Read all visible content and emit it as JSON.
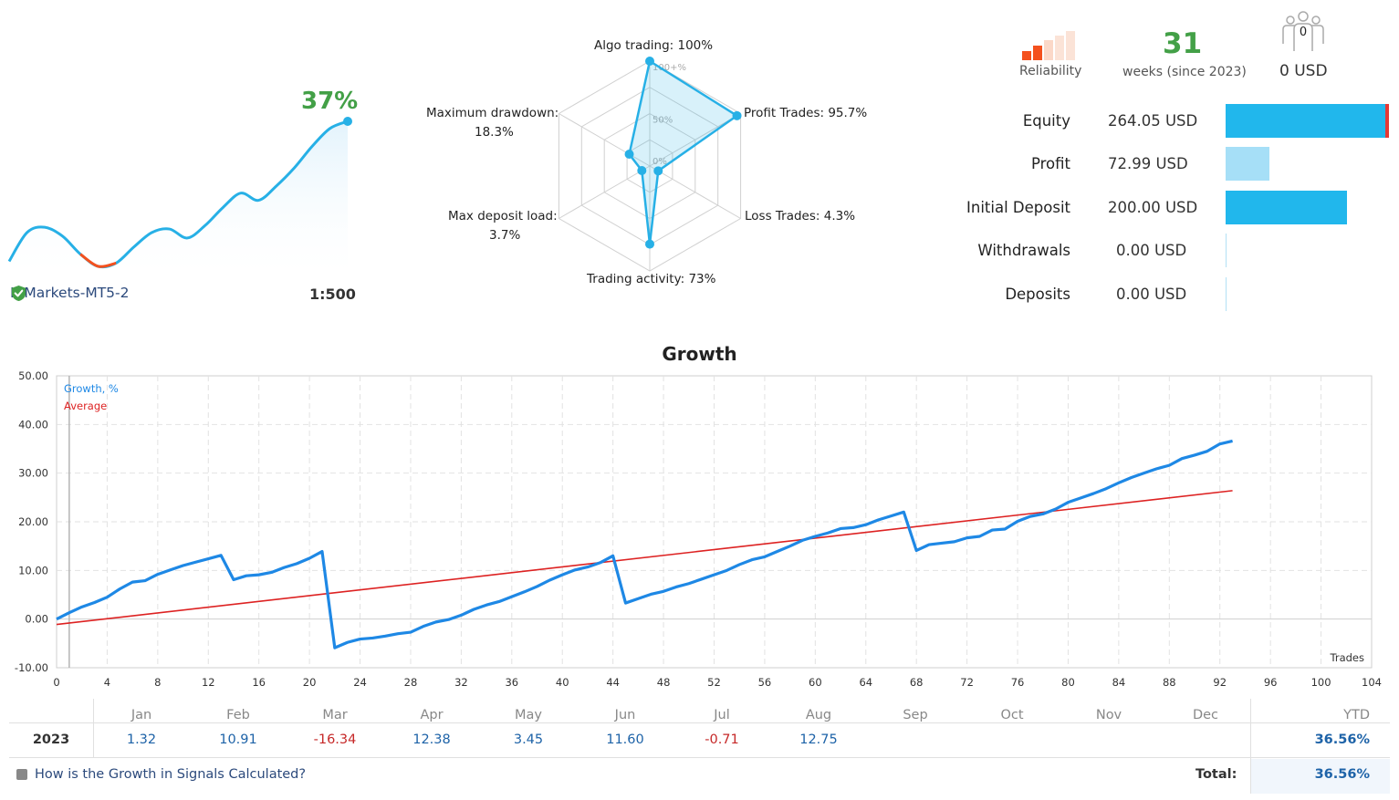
{
  "mini": {
    "growth_pct": "37%",
    "broker": "ICMarkets-MT5-2",
    "leverage": "1:500",
    "colors": {
      "line": "#27b0e6",
      "negative": "#f4511e",
      "fill": "#e3f3fc"
    },
    "sparkline": [
      -2.0,
      6.0,
      7.5,
      5.0,
      0.0,
      -3.4,
      -2.5,
      2.0,
      6.0,
      7.0,
      4.5,
      8.0,
      13.0,
      17.0,
      15.0,
      19.0,
      24.0,
      30.0,
      35.0,
      37.0
    ]
  },
  "radar": {
    "axes": [
      {
        "label": "Algo trading: 100%",
        "value": 100
      },
      {
        "label": "Profit Trades: 95.7%",
        "value": 95.7
      },
      {
        "label": "Loss Trades: 4.3%",
        "value": 4.3
      },
      {
        "label": "Trading activity: 73%",
        "value": 73
      },
      {
        "label": "Max deposit load:",
        "label2": "3.7%",
        "value": 3.7
      },
      {
        "label": "Maximum drawdown:",
        "label2": "18.3%",
        "value": 18.3
      }
    ],
    "ring_labels": [
      "100+%",
      "50%",
      "0%"
    ],
    "color": "#27b0e6"
  },
  "stats": {
    "reliability_label": "Reliability",
    "weeks_number": "31",
    "weeks_label": "weeks (since 2023)",
    "subscribers_count": "0",
    "subscribers_usd": "0 USD",
    "rows": [
      {
        "label": "Equity",
        "value": "264.05 USD",
        "amount": 264.05,
        "color": "#21b7ec"
      },
      {
        "label": "Profit",
        "value": "72.99 USD",
        "amount": 72.99,
        "color": "#a6dff7"
      },
      {
        "label": "Initial Deposit",
        "value": "200.00 USD",
        "amount": 200.0,
        "color": "#21b7ec"
      },
      {
        "label": "Withdrawals",
        "value": "0.00 USD",
        "amount": 0,
        "color": "#21b7ec"
      },
      {
        "label": "Deposits",
        "value": "0.00 USD",
        "amount": 0,
        "color": "#21b7ec"
      }
    ]
  },
  "chart_data": {
    "type": "line",
    "title": "Growth",
    "xlabel": "Trades",
    "ylabel": "",
    "xlim": [
      0,
      104
    ],
    "ylim": [
      -10,
      50
    ],
    "xticks": [
      0,
      4,
      8,
      12,
      16,
      20,
      24,
      28,
      32,
      36,
      40,
      44,
      48,
      52,
      56,
      60,
      64,
      68,
      72,
      76,
      80,
      84,
      88,
      92,
      96,
      100,
      104
    ],
    "yticks": [
      "-10.00",
      "0.00",
      "10.00",
      "20.00",
      "30.00",
      "40.00",
      "50.00"
    ],
    "grid": true,
    "legend": "top-left",
    "series": [
      {
        "name": "Growth, %",
        "color": "#1e88e5",
        "x": [
          0,
          1,
          2,
          3,
          4,
          5,
          6,
          7,
          8,
          9,
          10,
          11,
          12,
          13,
          14,
          15,
          16,
          17,
          18,
          19,
          20,
          21,
          22,
          23,
          24,
          25,
          26,
          27,
          28,
          29,
          30,
          31,
          32,
          33,
          34,
          35,
          36,
          37,
          38,
          39,
          40,
          41,
          42,
          43,
          44,
          45,
          46,
          47,
          48,
          49,
          50,
          51,
          52,
          53,
          54,
          55,
          56,
          57,
          58,
          59,
          60,
          61,
          62,
          63,
          64,
          65,
          66,
          67,
          68,
          69,
          70,
          71,
          72,
          73,
          74,
          75,
          76,
          77,
          78,
          79,
          80,
          81,
          82,
          83,
          84,
          85,
          86,
          87,
          88,
          89,
          90,
          91,
          92,
          93
        ],
        "y": [
          0.0,
          1.3,
          2.5,
          3.4,
          4.5,
          6.2,
          7.6,
          7.9,
          9.2,
          10.1,
          11.0,
          11.7,
          12.4,
          13.1,
          8.1,
          8.9,
          9.1,
          9.6,
          10.6,
          11.4,
          12.5,
          13.9,
          -5.9,
          -4.8,
          -4.1,
          -3.9,
          -3.5,
          -3.0,
          -2.7,
          -1.5,
          -0.6,
          -0.1,
          0.8,
          2.0,
          2.9,
          3.6,
          4.6,
          5.6,
          6.7,
          8.0,
          9.1,
          10.1,
          10.7,
          11.6,
          13.0,
          3.3,
          4.2,
          5.1,
          5.7,
          6.6,
          7.3,
          8.2,
          9.1,
          10.0,
          11.2,
          12.2,
          12.8,
          13.9,
          15.0,
          16.2,
          17.0,
          17.7,
          18.6,
          18.8,
          19.4,
          20.4,
          21.2,
          22.0,
          14.1,
          15.3,
          15.6,
          15.9,
          16.7,
          17.0,
          18.3,
          18.5,
          20.1,
          21.1,
          21.6,
          22.6,
          24.0,
          24.9,
          25.8,
          26.8,
          28.0,
          29.1,
          30.0,
          30.9,
          31.6,
          33.0,
          33.7,
          34.5,
          36.0,
          36.6
        ]
      },
      {
        "name": "Average",
        "color": "#dd2222",
        "x": [
          0,
          93
        ],
        "y": [
          -1.1,
          26.4
        ]
      }
    ]
  },
  "monthly": {
    "months": [
      "Jan",
      "Feb",
      "Mar",
      "Apr",
      "May",
      "Jun",
      "Jul",
      "Aug",
      "Sep",
      "Oct",
      "Nov",
      "Dec"
    ],
    "ytd_label": "YTD",
    "year": "2023",
    "values": [
      "1.32",
      "10.91",
      "-16.34",
      "12.38",
      "3.45",
      "11.60",
      "-0.71",
      "12.75",
      "",
      "",
      "",
      ""
    ],
    "ytd_value": "36.56%",
    "total_label": "Total:",
    "total_value": "36.56%",
    "link_text": "How is the Growth in Signals Calculated?"
  }
}
